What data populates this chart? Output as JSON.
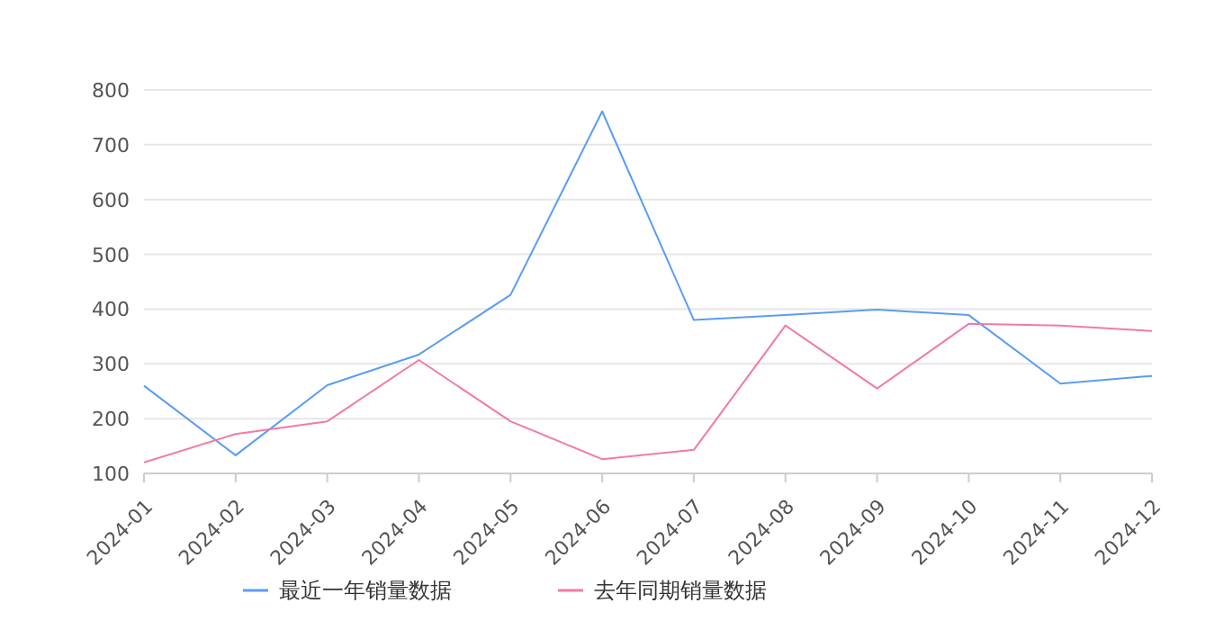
{
  "chart_data": {
    "type": "line",
    "categories": [
      "2024-01",
      "2024-02",
      "2024-03",
      "2024-04",
      "2024-05",
      "2024-06",
      "2024-07",
      "2024-08",
      "2024-09",
      "2024-10",
      "2024-11",
      "2024-12"
    ],
    "series": [
      {
        "name": "最近一年销量数据",
        "color": "#5b9cf2",
        "values": [
          260,
          133,
          261,
          317,
          426,
          761,
          380,
          389,
          399,
          389,
          264,
          278
        ]
      },
      {
        "name": "去年同期销量数据",
        "color": "#f27aa6",
        "values": [
          120,
          172,
          195,
          307,
          195,
          126,
          143,
          370,
          255,
          373,
          370,
          360
        ]
      }
    ],
    "ylim": [
      100,
      800
    ],
    "yticks": [
      100,
      200,
      300,
      400,
      500,
      600,
      700,
      800
    ],
    "grid": "y",
    "legend": "bottom",
    "marker": "none",
    "line_style": "solid"
  }
}
